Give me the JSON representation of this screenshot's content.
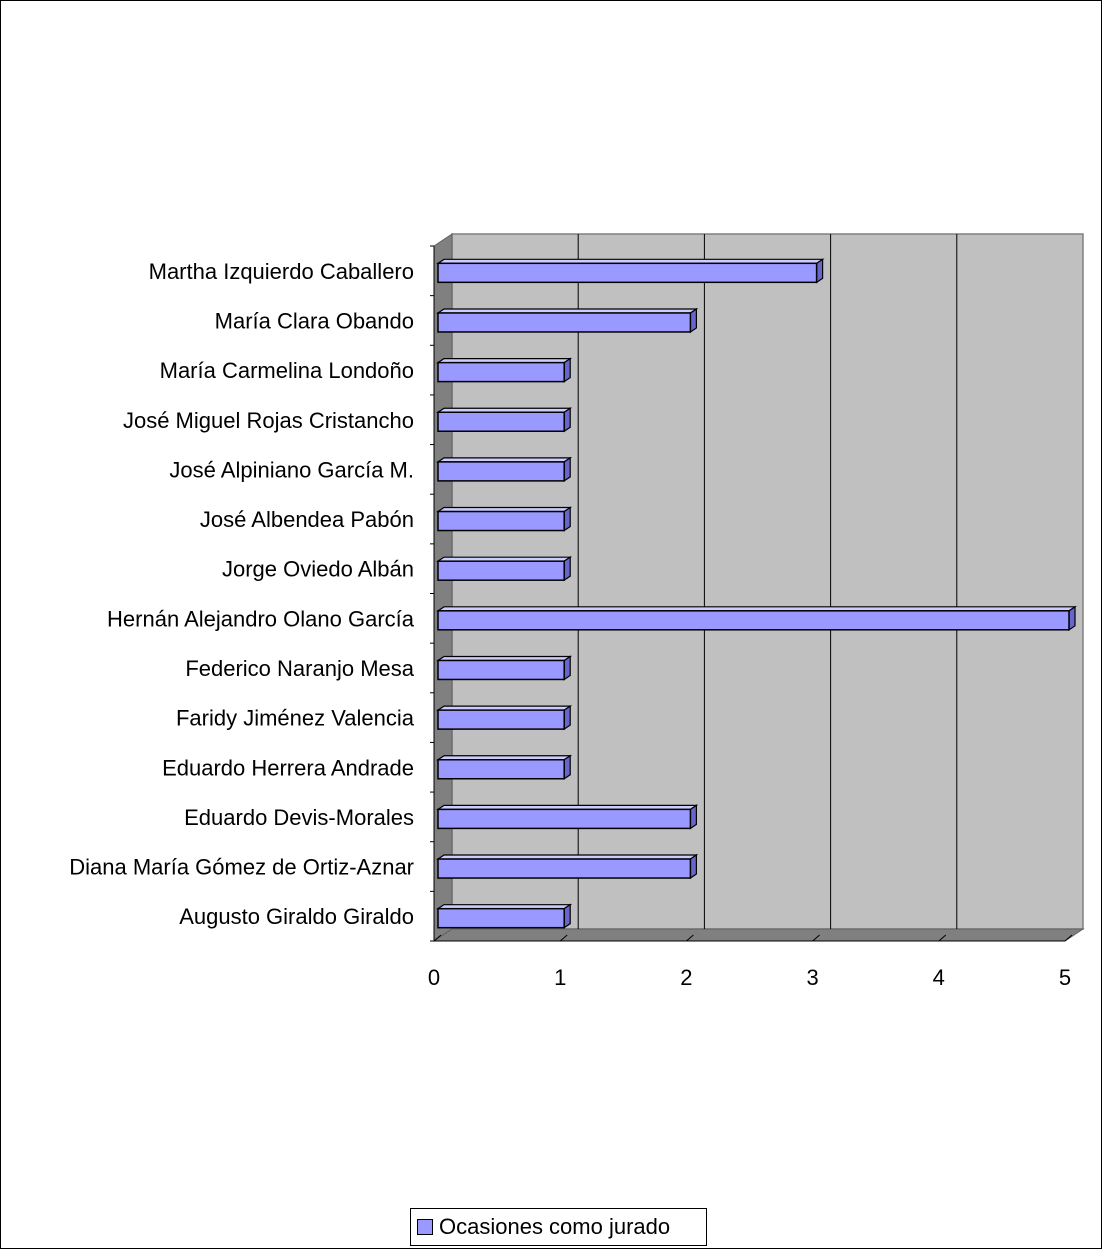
{
  "chart_data": {
    "type": "bar",
    "orientation": "horizontal",
    "three_d": true,
    "categories": [
      "Augusto Giraldo Giraldo",
      "Diana María Gómez de Ortiz-Aznar",
      "Eduardo Devis-Morales",
      "Eduardo Herrera Andrade",
      "Faridy Jiménez Valencia",
      "Federico Naranjo Mesa",
      "Hernán Alejandro Olano García",
      "Jorge Oviedo Albán",
      "José Albendea Pabón",
      "José Alpiniano García M.",
      "José Miguel Rojas Cristancho",
      "María Carmelina Londoño",
      "María Clara Obando",
      "Martha Izquierdo Caballero"
    ],
    "series": [
      {
        "name": "Ocasiones como jurado",
        "values": [
          1,
          2,
          2,
          1,
          1,
          1,
          5,
          1,
          1,
          1,
          1,
          1,
          2,
          3
        ]
      }
    ],
    "xlim": [
      0,
      5
    ],
    "xticks": [
      "0",
      "1",
      "2",
      "3",
      "4",
      "5"
    ],
    "grid": true,
    "legend_position": "bottom",
    "colors": {
      "bar": "#9999ff",
      "bar_top": "#ccccff",
      "bar_side": "#6666cc",
      "wall": "#c0c0c0",
      "floor": "#808080",
      "gridline": "#000000",
      "frame": "#000000"
    }
  },
  "legend": {
    "label": "Ocasiones como jurado"
  }
}
